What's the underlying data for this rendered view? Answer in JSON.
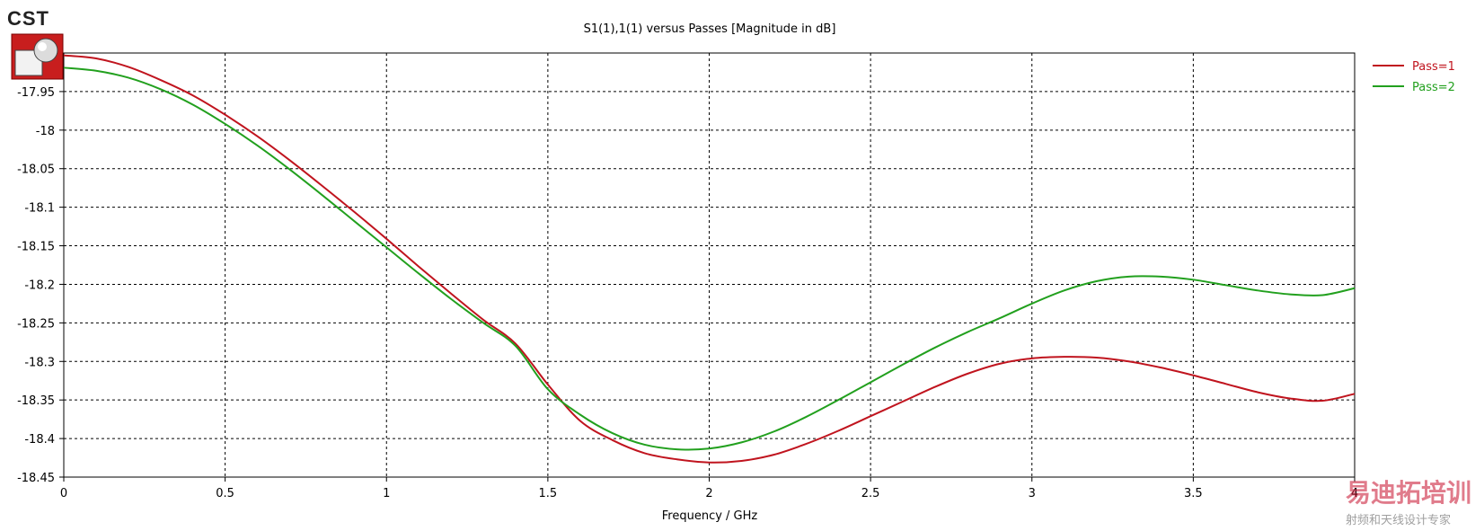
{
  "logo": {
    "text": "CST"
  },
  "watermark": {
    "brand": "易迪拓培训",
    "tagline": "射频和天线设计专家"
  },
  "chart_data": {
    "type": "line",
    "title": "S1(1),1(1) versus Passes [Magnitude in dB]",
    "xlabel": "Frequency / GHz",
    "ylabel": "",
    "xlim": [
      0,
      4
    ],
    "ylim": [
      -18.45,
      -17.9
    ],
    "x_ticks": [
      0,
      0.5,
      1,
      1.5,
      2,
      2.5,
      3,
      3.5,
      4
    ],
    "x_tick_labels": [
      "0",
      "0.5",
      "1",
      "1.5",
      "2",
      "2.5",
      "3",
      "3.5",
      "4"
    ],
    "y_ticks": [
      -17.95,
      -18,
      -18.05,
      -18.1,
      -18.15,
      -18.2,
      -18.25,
      -18.3,
      -18.35,
      -18.4,
      -18.45
    ],
    "y_tick_labels": [
      "-17.95",
      "-18",
      "-18.05",
      "-18.1",
      "-18.15",
      "-18.2",
      "-18.25",
      "-18.3",
      "-18.35",
      "-18.4",
      "-18.45"
    ],
    "grid": true,
    "legend_position": "right",
    "series": [
      {
        "name": "Pass=1",
        "color": "#c0141e",
        "x": [
          0,
          0.1,
          0.2,
          0.3,
          0.4,
          0.5,
          0.6,
          0.7,
          0.8,
          0.9,
          1.0,
          1.1,
          1.2,
          1.3,
          1.4,
          1.5,
          1.6,
          1.7,
          1.8,
          1.9,
          2.0,
          2.1,
          2.2,
          2.3,
          2.4,
          2.5,
          2.6,
          2.7,
          2.8,
          2.9,
          3.0,
          3.1,
          3.2,
          3.3,
          3.4,
          3.5,
          3.6,
          3.7,
          3.8,
          3.9,
          4.0
        ],
        "y": [
          -17.903,
          -17.907,
          -17.918,
          -17.935,
          -17.955,
          -17.98,
          -18.008,
          -18.039,
          -18.072,
          -18.106,
          -18.141,
          -18.177,
          -18.212,
          -18.246,
          -18.277,
          -18.33,
          -18.377,
          -18.402,
          -18.419,
          -18.427,
          -18.431,
          -18.429,
          -18.421,
          -18.407,
          -18.39,
          -18.371,
          -18.352,
          -18.333,
          -18.316,
          -18.303,
          -18.296,
          -18.294,
          -18.295,
          -18.3,
          -18.308,
          -18.318,
          -18.329,
          -18.34,
          -18.348,
          -18.351,
          -18.342
        ]
      },
      {
        "name": "Pass=2",
        "color": "#22a01e",
        "x": [
          0,
          0.1,
          0.2,
          0.3,
          0.4,
          0.5,
          0.6,
          0.7,
          0.8,
          0.9,
          1.0,
          1.1,
          1.2,
          1.3,
          1.4,
          1.5,
          1.6,
          1.7,
          1.8,
          1.9,
          2.0,
          2.1,
          2.2,
          2.3,
          2.4,
          2.5,
          2.6,
          2.7,
          2.8,
          2.9,
          3.0,
          3.1,
          3.2,
          3.3,
          3.4,
          3.5,
          3.6,
          3.7,
          3.8,
          3.9,
          4.0
        ],
        "y": [
          -17.919,
          -17.923,
          -17.932,
          -17.947,
          -17.967,
          -17.992,
          -18.02,
          -18.051,
          -18.084,
          -18.118,
          -18.152,
          -18.186,
          -18.219,
          -18.25,
          -18.28,
          -18.336,
          -18.369,
          -18.393,
          -18.408,
          -18.414,
          -18.413,
          -18.405,
          -18.391,
          -18.372,
          -18.35,
          -18.327,
          -18.304,
          -18.282,
          -18.262,
          -18.244,
          -18.225,
          -18.208,
          -18.196,
          -18.19,
          -18.19,
          -18.194,
          -18.201,
          -18.208,
          -18.213,
          -18.214,
          -18.205
        ]
      }
    ]
  }
}
